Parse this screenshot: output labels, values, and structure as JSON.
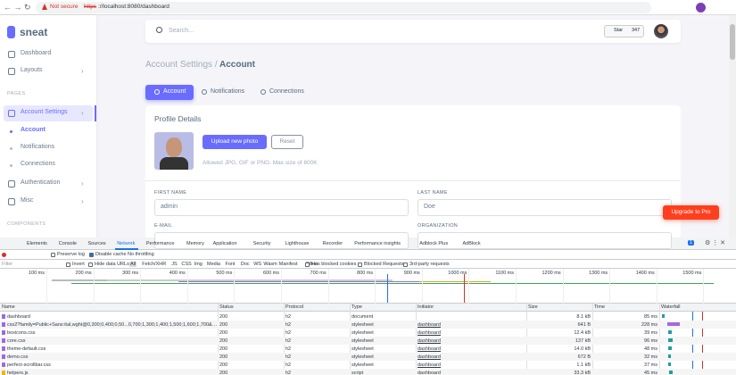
{
  "browser": {
    "security": "Not secure",
    "url_scheme": "https",
    "url_rest": "://localhost:8080/dashboard"
  },
  "sidebar": {
    "brand": "sneat",
    "items": [
      {
        "label": "Dashboard",
        "kind": "item"
      },
      {
        "label": "Layouts",
        "kind": "item"
      },
      {
        "label": "PAGES",
        "kind": "header"
      },
      {
        "label": "Account Settings",
        "kind": "active"
      },
      {
        "label": "Account",
        "kind": "sub-active"
      },
      {
        "label": "Notifications",
        "kind": "sub"
      },
      {
        "label": "Connections",
        "kind": "sub"
      },
      {
        "label": "Authentication",
        "kind": "item"
      },
      {
        "label": "Misc",
        "kind": "item"
      },
      {
        "label": "COMPONENTS",
        "kind": "header"
      }
    ]
  },
  "navbar": {
    "search": "Search...",
    "star": "Star",
    "star_count": "347"
  },
  "breadcrumb": {
    "parent": "Account Settings /",
    "current": "Account"
  },
  "tabs": [
    "Account",
    "Notifications",
    "Connections"
  ],
  "card": {
    "title": "Profile Details",
    "upload": "Upload new photo",
    "reset": "Reset",
    "hint": "Allowed JPG, GIF or PNG. Max size of 800K",
    "fields": [
      {
        "label": "FIRST NAME",
        "value": "admin"
      },
      {
        "label": "LAST NAME",
        "value": "Doe"
      },
      {
        "label": "E-MAIL"
      },
      {
        "label": "ORGANIZATION"
      }
    ]
  },
  "upgrade": "Upgrade to Pro",
  "devtools": {
    "tabs": [
      "Elements",
      "Console",
      "Sources",
      "Network",
      "Performance",
      "Memory",
      "Application",
      "Security",
      "Lighthouse",
      "Recorder",
      "Performance insights",
      "Adblock Plus",
      "AdBlock"
    ],
    "badge": "1",
    "toolbar": {
      "preserve": "Preserve log",
      "disable": "Disable cache",
      "throttle": "No throttling"
    },
    "filter": {
      "placeholder": "Filter",
      "invert": "Invert",
      "hide": "Hide data URLs",
      "types": [
        "All",
        "Fetch/XHR",
        "JS",
        "CSS",
        "Img",
        "Media",
        "Font",
        "Doc",
        "WS",
        "Wasm",
        "Manifest",
        "Other"
      ],
      "blocked_cookies": "Has blocked cookies",
      "blocked": "Blocked Requests",
      "third": "3rd-party requests"
    },
    "timeline": [
      "100 ms",
      "200 ms",
      "300 ms",
      "400 ms",
      "500 ms",
      "600 ms",
      "700 ms",
      "800 ms",
      "900 ms",
      "1000 ms",
      "1100 ms",
      "1200 ms",
      "1300 ms",
      "1400 ms",
      "1500 ms"
    ],
    "columns": [
      "Name",
      "Status",
      "Protocol",
      "Type",
      "Initiator",
      "Size",
      "Time",
      "Waterfall"
    ],
    "rows": [
      [
        "dashboard",
        "200",
        "h2",
        "document",
        null,
        "8.1 kB",
        "85 ms"
      ],
      [
        "css2?family=Public+Sans:ital,wght@0,300;0,400;0,50...0,700;1,300;1,400;1,500;1,600;1,700&display=s...",
        "200",
        "h2",
        "stylesheet",
        "dashboard",
        "641 B",
        "228 ms"
      ],
      [
        "boxicons.css",
        "200",
        "h2",
        "stylesheet",
        "dashboard",
        "12.4 kB",
        "39 ms"
      ],
      [
        "core.css",
        "200",
        "h2",
        "stylesheet",
        "dashboard",
        "137 kB",
        "96 ms"
      ],
      [
        "theme-default.css",
        "200",
        "h2",
        "stylesheet",
        "dashboard",
        "14.0 kB",
        "48 ms"
      ],
      [
        "demo.css",
        "200",
        "h2",
        "stylesheet",
        "dashboard",
        "672 B",
        "32 ms"
      ],
      [
        "perfect-scrollbar.css",
        "200",
        "h2",
        "stylesheet",
        "dashboard",
        "1.1 kB",
        "37 ms"
      ],
      [
        "helpers.js",
        "200",
        "h2",
        "script",
        "dashboard",
        "33.3 kB",
        "45 ms"
      ]
    ]
  }
}
